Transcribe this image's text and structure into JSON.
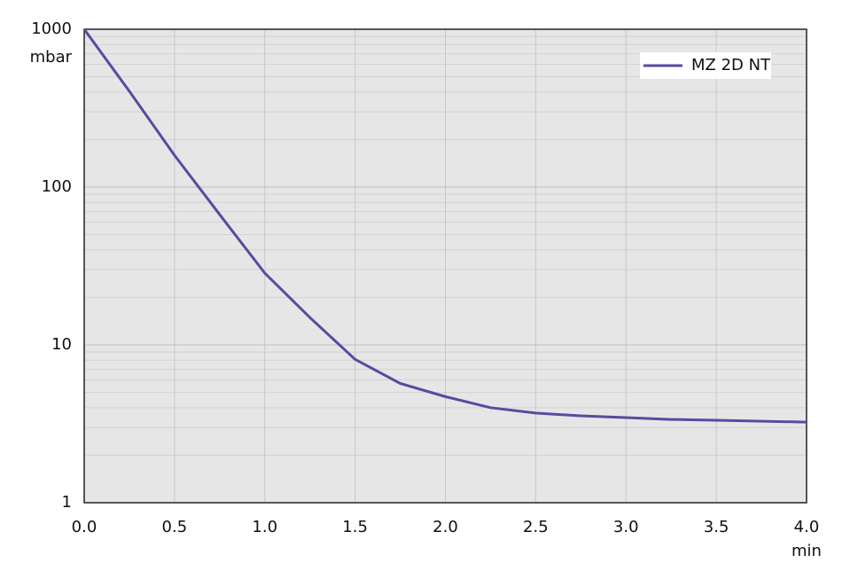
{
  "chart_data": {
    "type": "line",
    "x_label": "min",
    "y_label": "mbar",
    "log_y": true,
    "grid": true,
    "minor_grid": true,
    "legend": "upper right",
    "x": [
      0,
      0.25,
      0.5,
      0.75,
      1.0,
      1.25,
      1.5,
      1.75,
      2.0,
      2.25,
      2.5,
      2.75,
      3.0,
      3.25,
      3.5,
      4.0
    ],
    "series": [
      {
        "name": "MZ 2D NT",
        "color": "#5a4a9f",
        "values": [
          1000,
          405,
          159,
          67,
          28.5,
          14.9,
          8.1,
          5.7,
          4.7,
          4.0,
          3.7,
          3.55,
          3.46,
          3.37,
          3.33,
          3.24
        ]
      }
    ],
    "xlim": [
      0,
      4
    ],
    "xticks": [
      {
        "value": 0,
        "label": "0.0"
      },
      0.5,
      {
        "value": 1,
        "label": "1.0"
      },
      1.5,
      {
        "value": 2,
        "label": "2.0"
      },
      2.5,
      {
        "value": 3,
        "label": "3.0"
      },
      3.5,
      {
        "value": 4,
        "label": "4.0"
      }
    ],
    "ylim": [
      1,
      1000
    ],
    "yticks": [
      1,
      10,
      100,
      1000
    ]
  }
}
